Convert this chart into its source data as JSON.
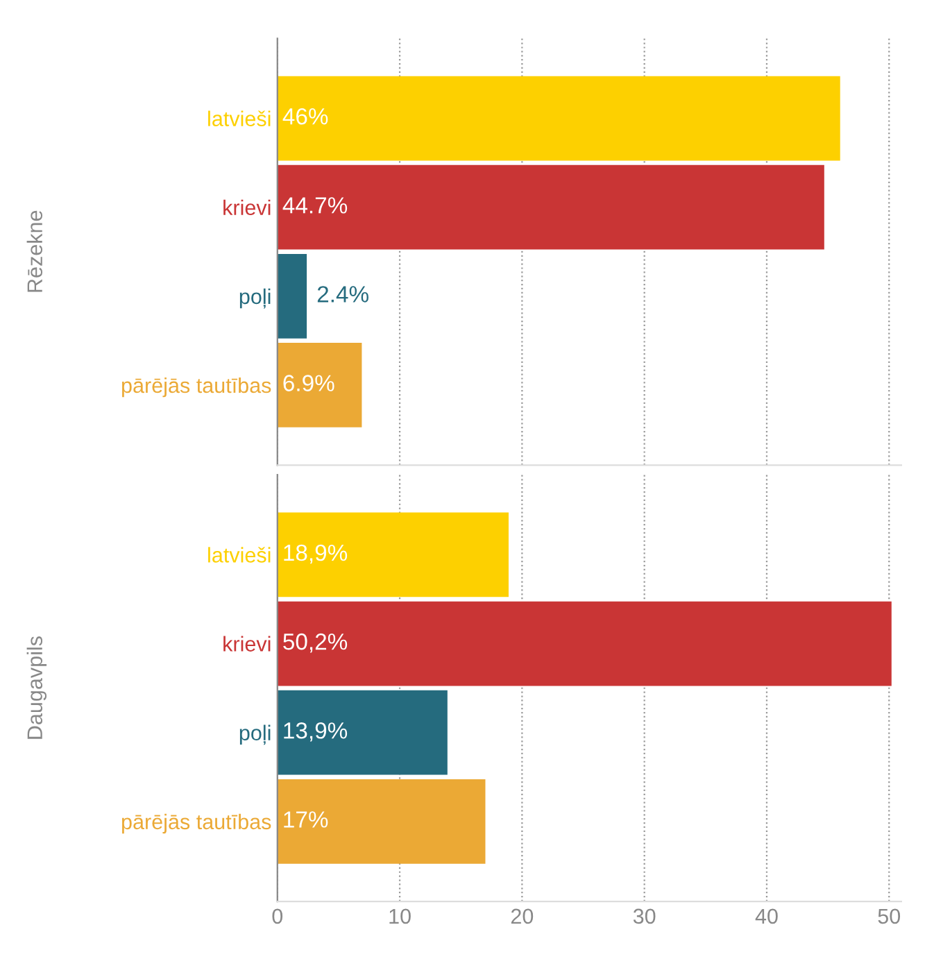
{
  "chart_data": [
    {
      "type": "bar",
      "orientation": "horizontal",
      "ylabel": "Rēzekne",
      "categories": [
        "latvieši",
        "krievi",
        "poļi",
        "pārējās tautības"
      ],
      "values": [
        46,
        44.7,
        2.4,
        6.9
      ],
      "value_labels": [
        "46%",
        "44.7%",
        "2.4%",
        "6.9%"
      ],
      "colors": [
        "#fdd000",
        "#c93535",
        "#256b7e",
        "#eba935"
      ],
      "xlim": [
        0,
        51
      ],
      "xticks": [
        0,
        10,
        20,
        30,
        40,
        50
      ],
      "grid": "x",
      "tick_labels": "y"
    },
    {
      "type": "bar",
      "orientation": "horizontal",
      "ylabel": "Daugavpils",
      "categories": [
        "latvieši",
        "krievi",
        "poļi",
        "pārējās tautības"
      ],
      "values": [
        18.9,
        50.2,
        13.9,
        17
      ],
      "value_labels": [
        "18,9%",
        "50,2%",
        "13,9%",
        "17%"
      ],
      "colors": [
        "#fdd000",
        "#c93535",
        "#256b7e",
        "#eba935"
      ],
      "xlim": [
        0,
        51
      ],
      "xticks": [
        0,
        10,
        20,
        30,
        40,
        50
      ],
      "grid": "x"
    }
  ]
}
